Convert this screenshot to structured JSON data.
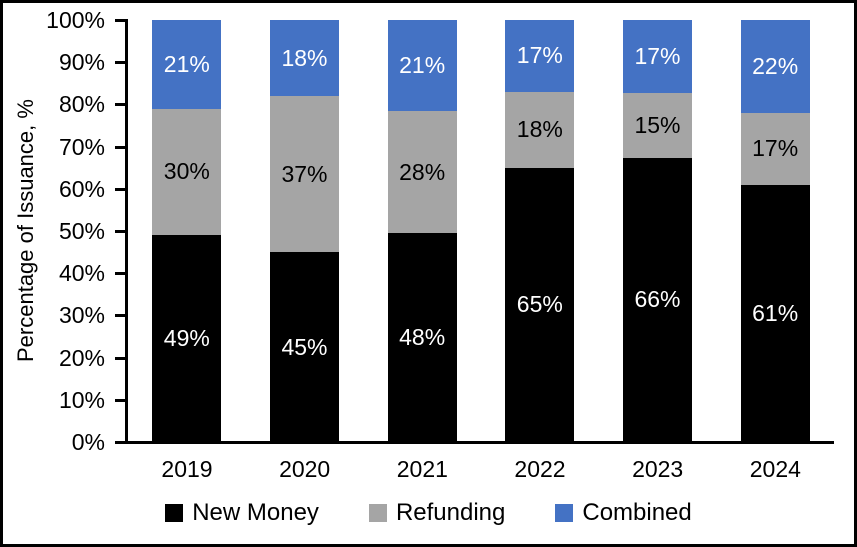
{
  "chart_data": {
    "type": "bar",
    "stacked": true,
    "title": "",
    "xlabel": "",
    "ylabel": "Percentage of Issuance, %",
    "categories": [
      "2019",
      "2020",
      "2021",
      "2022",
      "2023",
      "2024"
    ],
    "series": [
      {
        "name": "New Money",
        "color": "#000000",
        "label_color": "#ffffff",
        "values": [
          49,
          45,
          48,
          65,
          66,
          61
        ]
      },
      {
        "name": "Refunding",
        "color": "#A5A5A5",
        "label_color": "#000000",
        "values": [
          30,
          37,
          28,
          18,
          15,
          17
        ]
      },
      {
        "name": "Combined",
        "color": "#4472C4",
        "label_color": "#ffffff",
        "values": [
          21,
          18,
          21,
          17,
          17,
          22
        ]
      }
    ],
    "value_suffix": "%",
    "ylim": [
      0,
      100
    ],
    "ytick_step": 10,
    "yticks": [
      "0%",
      "10%",
      "20%",
      "30%",
      "40%",
      "50%",
      "60%",
      "70%",
      "80%",
      "90%",
      "100%"
    ],
    "grid": false,
    "legend_position": "bottom",
    "colors": {
      "axis": "#000000",
      "background": "#ffffff",
      "border": "#000000"
    }
  }
}
